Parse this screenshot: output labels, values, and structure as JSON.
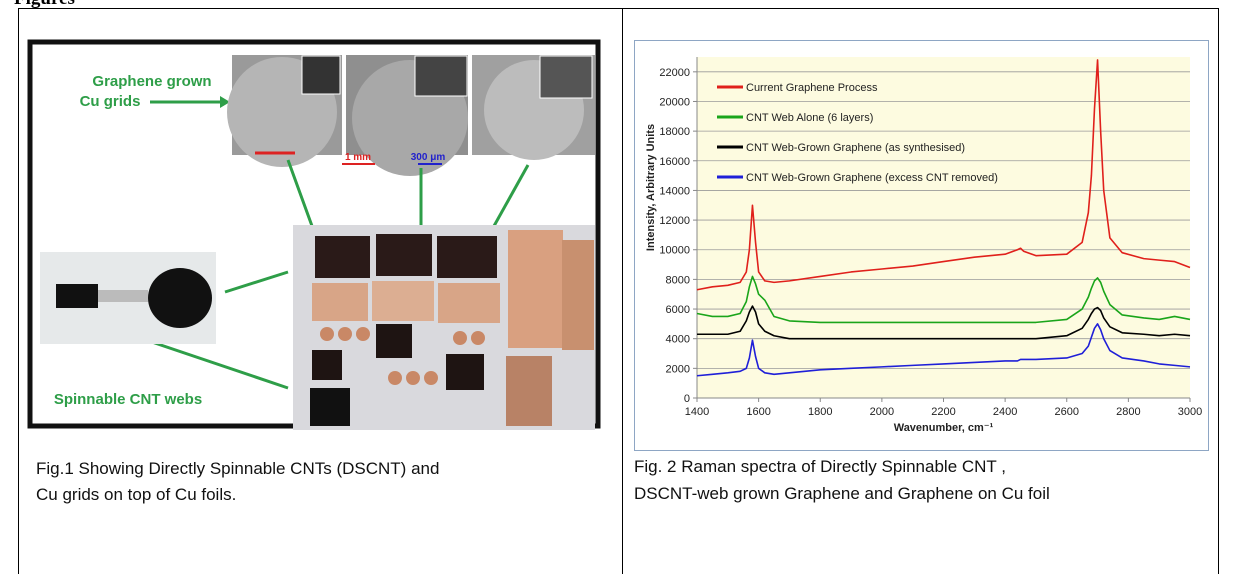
{
  "heading": "Figures",
  "figure1": {
    "graphene_label": [
      "Graphene grown",
      "Cu grids"
    ],
    "cnt_label": "Spinnable CNT webs",
    "scale_bars": [
      "1 mm",
      "300 μm"
    ]
  },
  "captions": {
    "left": [
      "Fig.1 Showing Directly Spinnable CNTs (DSCNT) and",
      "Cu grids on top of Cu foils."
    ],
    "right": [
      "Fig. 2 Raman spectra of Directly Spinnable CNT ,",
      "DSCNT-web grown Graphene and Graphene on Cu foil"
    ]
  },
  "chart_data": {
    "type": "line",
    "x_label": "Wavenumber, cm⁻¹",
    "y_label": "Intensity, Arbitrary Units",
    "x": [
      1400,
      1450,
      1500,
      1540,
      1560,
      1570,
      1580,
      1590,
      1600,
      1620,
      1650,
      1700,
      1800,
      1900,
      2000,
      2100,
      2200,
      2300,
      2400,
      2440,
      2450,
      2460,
      2500,
      2600,
      2650,
      2670,
      2680,
      2690,
      2700,
      2710,
      2720,
      2740,
      2780,
      2850,
      2900,
      2950,
      3000
    ],
    "series": [
      {
        "name": "Current Graphene Process",
        "color": "#e0201b",
        "values": [
          7300,
          7500,
          7600,
          7800,
          8500,
          10000,
          13000,
          10500,
          8500,
          7900,
          7800,
          7900,
          8200,
          8500,
          8700,
          8900,
          9200,
          9500,
          9700,
          10000,
          10100,
          9900,
          9600,
          9700,
          10500,
          12500,
          15000,
          19500,
          22800,
          18000,
          14000,
          10800,
          9800,
          9400,
          9300,
          9200,
          8800
        ]
      },
      {
        "name": "CNT Web Alone (6 layers)",
        "color": "#1aa51a",
        "values": [
          5700,
          5500,
          5500,
          5700,
          6500,
          7500,
          8200,
          7700,
          7000,
          6600,
          5500,
          5200,
          5100,
          5100,
          5100,
          5100,
          5100,
          5100,
          5100,
          5100,
          5100,
          5100,
          5100,
          5300,
          6000,
          6800,
          7400,
          7900,
          8100,
          7800,
          7200,
          6300,
          5600,
          5400,
          5300,
          5500,
          5300
        ]
      },
      {
        "name": "CNT Web-Grown Graphene (as synthesised)",
        "color": "#000000",
        "values": [
          4300,
          4300,
          4300,
          4500,
          5200,
          5800,
          6200,
          5800,
          5000,
          4500,
          4200,
          4000,
          4000,
          4000,
          4000,
          4000,
          4000,
          4000,
          4000,
          4000,
          4000,
          4000,
          4000,
          4200,
          4700,
          5300,
          5700,
          6000,
          6100,
          5900,
          5400,
          4800,
          4400,
          4300,
          4200,
          4300,
          4200
        ]
      },
      {
        "name": "CNT Web-Grown Graphene (excess CNT removed)",
        "color": "#1f1fd8",
        "values": [
          1500,
          1600,
          1700,
          1800,
          2000,
          2700,
          3900,
          2800,
          2000,
          1700,
          1600,
          1700,
          1900,
          2000,
          2100,
          2200,
          2300,
          2400,
          2500,
          2500,
          2600,
          2600,
          2600,
          2700,
          3000,
          3500,
          4100,
          4700,
          5000,
          4600,
          4000,
          3200,
          2700,
          2500,
          2300,
          2200,
          2100
        ]
      }
    ],
    "xlim": [
      1400,
      3000
    ],
    "xticks": [
      1400,
      1600,
      1800,
      2000,
      2200,
      2400,
      2600,
      2800,
      3000
    ],
    "ylim": [
      0,
      23000
    ],
    "yticks": [
      0,
      2000,
      4000,
      6000,
      8000,
      10000,
      12000,
      14000,
      16000,
      18000,
      20000,
      22000
    ],
    "grid": true,
    "legend": "top-left",
    "plot_background": "#fdfbe0"
  }
}
